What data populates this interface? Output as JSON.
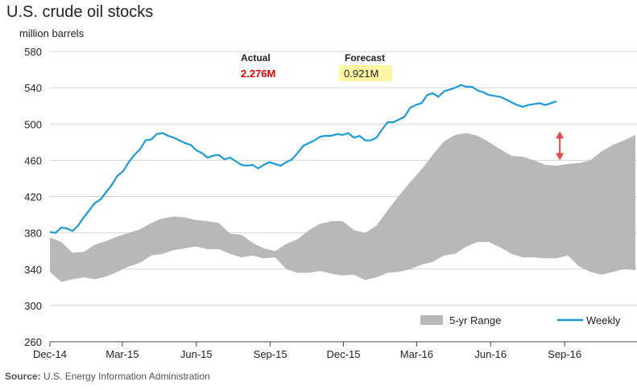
{
  "chart_data": {
    "type": "line",
    "title": "U.S. crude oil stocks",
    "ylabel": "million barrels",
    "source_label": "Source:",
    "source_text": "U.S. Energy Information Administration",
    "ylim": [
      260,
      580
    ],
    "yticks": [
      260,
      300,
      340,
      380,
      420,
      460,
      500,
      540,
      580
    ],
    "xlim": [
      "2014-12-01",
      "2016-11-30"
    ],
    "xticks": [
      {
        "date": "2014-12-01",
        "label": "Dec-14"
      },
      {
        "date": "2015-03-01",
        "label": "Mar-15"
      },
      {
        "date": "2015-06-01",
        "label": "Jun-15"
      },
      {
        "date": "2015-09-01",
        "label": "Sep-15"
      },
      {
        "date": "2015-12-01",
        "label": "Dec-15"
      },
      {
        "date": "2016-03-01",
        "label": "Mar-16"
      },
      {
        "date": "2016-06-01",
        "label": "Jun-16"
      },
      {
        "date": "2016-09-01",
        "label": "Sep-16"
      }
    ],
    "grid": true,
    "legend_position": "bottom-right",
    "series": [
      {
        "name": "Weekly",
        "color": "#1a9bd7",
        "points": [
          [
            "2014-12-01",
            381
          ],
          [
            "2014-12-08",
            380
          ],
          [
            "2014-12-15",
            386
          ],
          [
            "2014-12-22",
            385
          ],
          [
            "2014-12-29",
            382
          ],
          [
            "2015-01-05",
            388
          ],
          [
            "2015-01-12",
            397
          ],
          [
            "2015-01-19",
            405
          ],
          [
            "2015-01-26",
            413
          ],
          [
            "2015-02-02",
            417
          ],
          [
            "2015-02-09",
            425
          ],
          [
            "2015-02-16",
            433
          ],
          [
            "2015-02-23",
            443
          ],
          [
            "2015-03-02",
            448
          ],
          [
            "2015-03-09",
            458
          ],
          [
            "2015-03-16",
            466
          ],
          [
            "2015-03-23",
            472
          ],
          [
            "2015-03-30",
            482
          ],
          [
            "2015-04-06",
            483
          ],
          [
            "2015-04-13",
            489
          ],
          [
            "2015-04-20",
            490
          ],
          [
            "2015-04-27",
            487
          ],
          [
            "2015-05-04",
            485
          ],
          [
            "2015-05-11",
            482
          ],
          [
            "2015-05-18",
            479
          ],
          [
            "2015-05-25",
            477
          ],
          [
            "2015-06-01",
            471
          ],
          [
            "2015-06-08",
            468
          ],
          [
            "2015-06-15",
            463
          ],
          [
            "2015-06-22",
            465
          ],
          [
            "2015-06-29",
            466
          ],
          [
            "2015-07-06",
            461
          ],
          [
            "2015-07-13",
            463
          ],
          [
            "2015-07-20",
            459
          ],
          [
            "2015-07-27",
            455
          ],
          [
            "2015-08-03",
            454
          ],
          [
            "2015-08-10",
            455
          ],
          [
            "2015-08-17",
            451
          ],
          [
            "2015-08-24",
            455
          ],
          [
            "2015-08-31",
            458
          ],
          [
            "2015-09-07",
            456
          ],
          [
            "2015-09-14",
            454
          ],
          [
            "2015-09-21",
            458
          ],
          [
            "2015-09-28",
            461
          ],
          [
            "2015-10-05",
            468
          ],
          [
            "2015-10-12",
            476
          ],
          [
            "2015-10-19",
            479
          ],
          [
            "2015-10-26",
            482
          ],
          [
            "2015-11-02",
            486
          ],
          [
            "2015-11-09",
            487
          ],
          [
            "2015-11-16",
            487
          ],
          [
            "2015-11-23",
            489
          ],
          [
            "2015-11-30",
            488
          ],
          [
            "2015-12-07",
            490
          ],
          [
            "2015-12-14",
            485
          ],
          [
            "2015-12-21",
            487
          ],
          [
            "2015-12-28",
            482
          ],
          [
            "2016-01-04",
            482
          ],
          [
            "2016-01-11",
            485
          ],
          [
            "2016-01-18",
            494
          ],
          [
            "2016-01-25",
            502
          ],
          [
            "2016-02-01",
            502
          ],
          [
            "2016-02-08",
            505
          ],
          [
            "2016-02-15",
            508
          ],
          [
            "2016-02-22",
            518
          ],
          [
            "2016-02-29",
            521
          ],
          [
            "2016-03-07",
            523
          ],
          [
            "2016-03-14",
            532
          ],
          [
            "2016-03-21",
            534
          ],
          [
            "2016-03-28",
            530
          ],
          [
            "2016-04-04",
            536
          ],
          [
            "2016-04-11",
            538
          ],
          [
            "2016-04-18",
            540
          ],
          [
            "2016-04-25",
            543
          ],
          [
            "2016-05-02",
            541
          ],
          [
            "2016-05-09",
            541
          ],
          [
            "2016-05-16",
            537
          ],
          [
            "2016-05-23",
            535
          ],
          [
            "2016-05-30",
            532
          ],
          [
            "2016-06-06",
            531
          ],
          [
            "2016-06-13",
            530
          ],
          [
            "2016-06-20",
            527
          ],
          [
            "2016-06-27",
            524
          ],
          [
            "2016-07-04",
            521
          ],
          [
            "2016-07-11",
            519
          ],
          [
            "2016-07-18",
            521
          ],
          [
            "2016-07-25",
            522
          ],
          [
            "2016-08-01",
            523
          ],
          [
            "2016-08-08",
            521
          ],
          [
            "2016-08-15",
            523
          ],
          [
            "2016-08-22",
            525
          ]
        ]
      },
      {
        "name": "5-yr Range",
        "color": "#b8b8b8",
        "type": "range",
        "dates": [
          "2014-12-01",
          "2014-12-15",
          "2014-12-29",
          "2015-01-12",
          "2015-01-26",
          "2015-02-09",
          "2015-02-23",
          "2015-03-09",
          "2015-03-23",
          "2015-04-06",
          "2015-04-20",
          "2015-05-04",
          "2015-05-18",
          "2015-06-01",
          "2015-06-15",
          "2015-06-29",
          "2015-07-13",
          "2015-07-27",
          "2015-08-10",
          "2015-08-24",
          "2015-09-07",
          "2015-09-21",
          "2015-10-05",
          "2015-10-19",
          "2015-11-02",
          "2015-11-16",
          "2015-11-30",
          "2015-12-14",
          "2015-12-28",
          "2016-01-11",
          "2016-01-25",
          "2016-02-08",
          "2016-02-22",
          "2016-03-07",
          "2016-03-21",
          "2016-04-04",
          "2016-04-18",
          "2016-05-02",
          "2016-05-16",
          "2016-05-30",
          "2016-06-13",
          "2016-06-27",
          "2016-07-11",
          "2016-07-25",
          "2016-08-08",
          "2016-08-22",
          "2016-09-05",
          "2016-09-19",
          "2016-10-03",
          "2016-10-17",
          "2016-10-31",
          "2016-11-14",
          "2016-11-28"
        ],
        "low": [
          337,
          326,
          329,
          331,
          329,
          332,
          337,
          343,
          347,
          355,
          357,
          361,
          363,
          365,
          362,
          362,
          357,
          353,
          355,
          352,
          353,
          340,
          336,
          336,
          338,
          335,
          333,
          334,
          328,
          331,
          336,
          337,
          340,
          345,
          348,
          355,
          357,
          365,
          370,
          370,
          364,
          357,
          353,
          353,
          352,
          352,
          355,
          343,
          337,
          334,
          337,
          340,
          339
        ],
        "high": [
          375,
          370,
          358,
          359,
          367,
          371,
          376,
          380,
          384,
          391,
          396,
          398,
          397,
          394,
          393,
          391,
          379,
          378,
          369,
          363,
          360,
          368,
          373,
          383,
          390,
          393,
          393,
          383,
          380,
          388,
          405,
          421,
          436,
          450,
          466,
          481,
          488,
          490,
          487,
          480,
          472,
          465,
          464,
          460,
          455,
          454,
          456,
          457,
          460,
          470,
          477,
          482,
          488
        ]
      }
    ],
    "annotations": {
      "actual_label": "Actual",
      "actual_value": "2.276M",
      "forecast_label": "Forecast",
      "forecast_value": "0.921M",
      "arrow_date": "2016-08-26",
      "arrow_from": 492,
      "arrow_to": 460,
      "arrow_color": "#e8454a",
      "forecast_highlight": "#fdf6a3"
    },
    "legend": [
      {
        "label": "5-yr Range",
        "color": "#b8b8b8",
        "kind": "area"
      },
      {
        "label": "Weekly",
        "color": "#1a9bd7",
        "kind": "line"
      }
    ]
  }
}
